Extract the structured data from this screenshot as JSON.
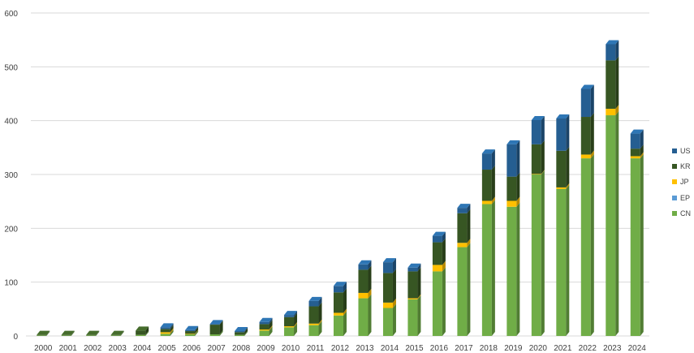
{
  "chart_data": {
    "type": "bar",
    "stacked": true,
    "style": "3d-column",
    "categories": [
      "2000",
      "2001",
      "2002",
      "2003",
      "2004",
      "2005",
      "2006",
      "2007",
      "2008",
      "2009",
      "2010",
      "2011",
      "2012",
      "2013",
      "2014",
      "2015",
      "2016",
      "2017",
      "2018",
      "2019",
      "2020",
      "2021",
      "2022",
      "2023",
      "2024"
    ],
    "series": [
      {
        "name": "CN",
        "color": "#70AD47",
        "values": [
          1,
          1,
          1,
          1,
          2,
          4,
          3,
          3,
          2,
          10,
          16,
          20,
          38,
          70,
          52,
          68,
          120,
          165,
          245,
          240,
          300,
          273,
          330,
          410,
          330
        ]
      },
      {
        "name": "EP",
        "color": "#5B9BD5",
        "values": [
          0,
          0,
          0,
          0,
          0,
          0,
          0,
          0,
          0,
          0,
          0,
          0,
          0,
          0,
          0,
          0,
          0,
          0,
          0,
          0,
          0,
          0,
          0,
          0,
          0
        ]
      },
      {
        "name": "JP",
        "color": "#FFC000",
        "values": [
          0,
          0,
          0,
          0,
          0,
          3,
          1,
          0,
          0,
          2,
          2,
          3,
          5,
          10,
          10,
          2,
          12,
          8,
          6,
          11,
          1,
          3,
          7,
          12,
          4
        ]
      },
      {
        "name": "KR",
        "color": "#375623",
        "values": [
          1,
          1,
          1,
          1,
          8,
          6,
          5,
          18,
          5,
          10,
          17,
          32,
          38,
          43,
          55,
          50,
          42,
          55,
          58,
          45,
          55,
          68,
          70,
          90,
          14
        ]
      },
      {
        "name": "US",
        "color": "#255E91",
        "values": [
          0,
          0,
          0,
          0,
          0,
          3,
          2,
          1,
          2,
          4,
          4,
          10,
          12,
          10,
          20,
          7,
          12,
          10,
          30,
          60,
          45,
          60,
          52,
          30,
          28
        ]
      }
    ],
    "ylim": [
      0,
      600
    ],
    "yticks": [
      "0",
      "100",
      "200",
      "300",
      "400",
      "500",
      "600"
    ],
    "grid": true,
    "legend_position": "right",
    "legend_order": [
      "US",
      "KR",
      "JP",
      "EP",
      "CN"
    ]
  }
}
